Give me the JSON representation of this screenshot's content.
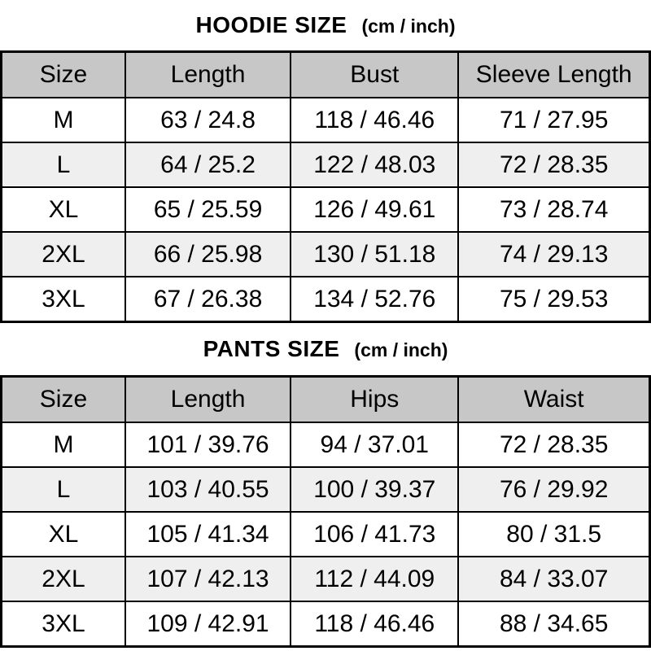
{
  "colors": {
    "header_bg": "#c7c7c7",
    "stripe_bg": "#efefef",
    "border_color": "#000000",
    "text_color": "#000000"
  },
  "chart_data": [
    {
      "type": "table",
      "title": "HOODIE SIZE",
      "unit_label": "(cm / inch)",
      "headers": [
        "Size",
        "Length",
        "Bust",
        "Sleeve Length"
      ],
      "rows": [
        [
          "M",
          "63 / 24.8",
          "118 / 46.46",
          "71 / 27.95"
        ],
        [
          "L",
          "64 / 25.2",
          "122 / 48.03",
          "72 / 28.35"
        ],
        [
          "XL",
          "65 / 25.59",
          "126 / 49.61",
          "73 / 28.74"
        ],
        [
          "2XL",
          "66 / 25.98",
          "130 / 51.18",
          "74 / 29.13"
        ],
        [
          "3XL",
          "67 / 26.38",
          "134 / 52.76",
          "75 / 29.53"
        ]
      ]
    },
    {
      "type": "table",
      "title": "PANTS SIZE",
      "unit_label": "(cm / inch)",
      "headers": [
        "Size",
        "Length",
        "Hips",
        "Waist"
      ],
      "rows": [
        [
          "M",
          "101 / 39.76",
          "94 / 37.01",
          "72 / 28.35"
        ],
        [
          "L",
          "103 / 40.55",
          "100 / 39.37",
          "76 / 29.92"
        ],
        [
          "XL",
          "105 / 41.34",
          "106 / 41.73",
          "80 / 31.5"
        ],
        [
          "2XL",
          "107 / 42.13",
          "112 / 44.09",
          "84 / 33.07"
        ],
        [
          "3XL",
          "109 / 42.91",
          "118 / 46.46",
          "88 / 34.65"
        ]
      ]
    }
  ]
}
